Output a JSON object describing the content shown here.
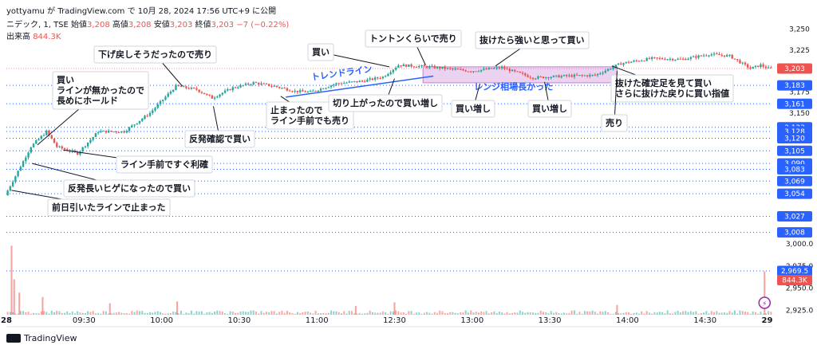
{
  "header": {
    "line1": "yottyamu が TradingView.com で 10月 28, 2024 17:56 UTC+9 に公開",
    "symbol": "ニデック, 1, TSE",
    "open_label": "始値",
    "open": "3,208",
    "high_label": "高値",
    "high": "3,208",
    "low_label": "安値",
    "low": "3,203",
    "close_label": "終値",
    "close": "3,203",
    "change": "−7 (−0.22%)",
    "volume_label": "出来高",
    "volume": "844.3K"
  },
  "brand": "TradingView",
  "colors": {
    "up": "#26a69a",
    "down": "#ef5350",
    "line": "#2962ff",
    "range": "#c77dd6",
    "trend_text": "#2962ff"
  },
  "chart_data": {
    "type": "candlestick",
    "x_ticks": [
      "28",
      "09:30",
      "10:00",
      "10:30",
      "11:00",
      "12:30",
      "13:00",
      "13:30",
      "14:00",
      "14:30",
      "29"
    ],
    "price_ticks": [
      "3,250",
      "3,225",
      "3,175",
      "3,150",
      "3,000.0",
      "2,975.0",
      "2,950.0",
      "2,925.0"
    ],
    "price_axis_labels": [
      {
        "text": "3,203",
        "kind": "current"
      },
      {
        "text": "3,183",
        "kind": "line"
      },
      {
        "text": "3,161",
        "kind": "line"
      },
      {
        "text": "3,133",
        "kind": "line"
      },
      {
        "text": "3,128",
        "kind": "line"
      },
      {
        "text": "3,120",
        "kind": "line"
      },
      {
        "text": "3,105",
        "kind": "line"
      },
      {
        "text": "3,090",
        "kind": "line"
      },
      {
        "text": "3,083",
        "kind": "line"
      },
      {
        "text": "3,069",
        "kind": "line"
      },
      {
        "text": "3,054",
        "kind": "line"
      },
      {
        "text": "3,027",
        "kind": "line"
      },
      {
        "text": "3,008",
        "kind": "line"
      },
      {
        "text": "2,969.5",
        "kind": "line"
      },
      {
        "text": "844.3K",
        "kind": "volume"
      }
    ],
    "price_range": [
      3000,
      3258
    ],
    "volume_range": [
      2920,
      3010
    ],
    "horizontal_lines": [
      3183,
      3161,
      3133,
      3128,
      3120,
      3105,
      3090,
      3083,
      3069,
      3054,
      3027,
      3008
    ],
    "volume_line": 2969.5,
    "current_price": 3203,
    "anchors": [
      {
        "t": 0,
        "p": 3052
      },
      {
        "t": 4,
        "p": 3075
      },
      {
        "t": 10,
        "p": 3110
      },
      {
        "t": 16,
        "p": 3128
      },
      {
        "t": 20,
        "p": 3110
      },
      {
        "t": 28,
        "p": 3102
      },
      {
        "t": 36,
        "p": 3128
      },
      {
        "t": 46,
        "p": 3128
      },
      {
        "t": 56,
        "p": 3150
      },
      {
        "t": 66,
        "p": 3182
      },
      {
        "t": 74,
        "p": 3178
      },
      {
        "t": 80,
        "p": 3168
      },
      {
        "t": 88,
        "p": 3180
      },
      {
        "t": 96,
        "p": 3186
      },
      {
        "t": 104,
        "p": 3182
      },
      {
        "t": 112,
        "p": 3176
      },
      {
        "t": 118,
        "p": 3175
      },
      {
        "t": 128,
        "p": 3185
      },
      {
        "t": 138,
        "p": 3188
      },
      {
        "t": 146,
        "p": 3193
      },
      {
        "t": 152,
        "p": 3207
      },
      {
        "t": 164,
        "p": 3205
      },
      {
        "t": 180,
        "p": 3200
      },
      {
        "t": 192,
        "p": 3204
      },
      {
        "t": 204,
        "p": 3192
      },
      {
        "t": 216,
        "p": 3194
      },
      {
        "t": 228,
        "p": 3195
      },
      {
        "t": 238,
        "p": 3209
      },
      {
        "t": 250,
        "p": 3215
      },
      {
        "t": 262,
        "p": 3214
      },
      {
        "t": 272,
        "p": 3220
      },
      {
        "t": 280,
        "p": 3218
      },
      {
        "t": 288,
        "p": 3203
      },
      {
        "t": 292,
        "p": 3207
      },
      {
        "t": 295,
        "p": 3203
      }
    ],
    "volume_spikes": [
      {
        "t": 2,
        "v": 2998
      },
      {
        "t": 3,
        "v": 2960
      },
      {
        "t": 5,
        "v": 2945
      },
      {
        "t": 14,
        "v": 2940
      },
      {
        "t": 40,
        "v": 2933
      },
      {
        "t": 66,
        "v": 2935
      },
      {
        "t": 135,
        "v": 2930
      },
      {
        "t": 150,
        "v": 2934
      },
      {
        "t": 236,
        "v": 2931
      },
      {
        "t": 293,
        "v": 2969
      }
    ],
    "trend_line": {
      "label": "トレンドライン",
      "from": {
        "t": 108,
        "p": 3169
      },
      "to": {
        "t": 165,
        "p": 3194
      }
    },
    "range_box": {
      "label": "レンジ相場長かった",
      "t0": 161,
      "t1": 236,
      "p_top": 3205,
      "p_bottom": 3186
    },
    "annotations": [
      {
        "text": "前日引いたラインで止まった",
        "t": 2,
        "p": 3058
      },
      {
        "text": "反発長いヒゲになったので買い",
        "t": 10,
        "p": 3090
      },
      {
        "text": "ライン手前ですぐ利確",
        "t": 22,
        "p": 3106
      },
      {
        "text": "買い\nラインが無かったので\n長めにホールド",
        "t": 12,
        "p": 3112
      },
      {
        "text": "下げ戻しそうだったので売り",
        "t": 68,
        "p": 3182
      },
      {
        "text": "反発確認で買い",
        "t": 80,
        "p": 3158
      },
      {
        "text": "止まったので\nライン手前でも売り",
        "t": 106,
        "p": 3170
      },
      {
        "text": "買い",
        "t": 148,
        "p": 3205
      },
      {
        "text": "トントンくらいで売り",
        "t": 162,
        "p": 3207
      },
      {
        "text": "切り上がったので買い増し",
        "t": 150,
        "p": 3191
      },
      {
        "text": "抜けたら強いと思って買い",
        "t": 189,
        "p": 3206
      },
      {
        "text": "買い増し",
        "t": 183,
        "p": 3185
      },
      {
        "text": "買い増し",
        "t": 208,
        "p": 3187
      },
      {
        "text": "抜けた確定足を見て買い\nさらに抜けた戻りに買い指値",
        "t": 234,
        "p": 3206
      },
      {
        "text": "売り",
        "t": 236,
        "p": 3200
      }
    ]
  }
}
